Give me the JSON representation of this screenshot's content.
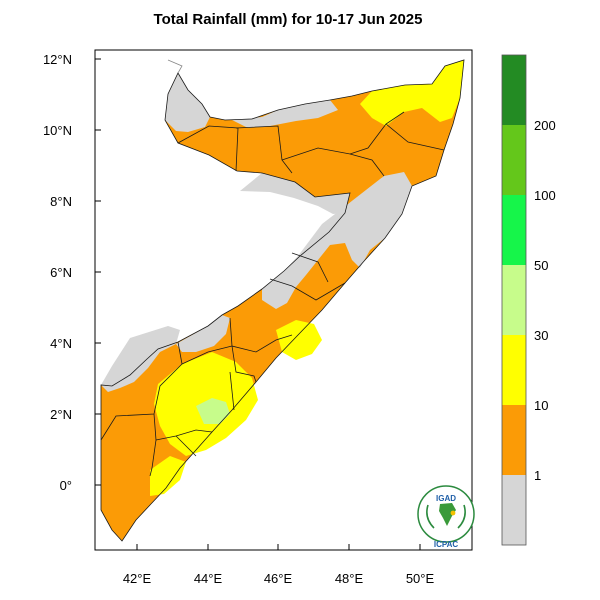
{
  "map": {
    "title": "Total Rainfall (mm) for 10-17 Jun 2025",
    "lat_labels": [
      "12°N",
      "10°N",
      "8°N",
      "6°N",
      "4°N",
      "2°N",
      "0°"
    ],
    "lon_labels": [
      "42°E",
      "44°E",
      "46°E",
      "48°E",
      "50°E"
    ],
    "colors": {
      "no_rain": "#d6d6d6",
      "range_1_10": "#fb9b06",
      "range_10_30": "#ffff00",
      "range_30_50": "#c7fc8b",
      "range_50_100": "#16f54a",
      "range_100_200": "#64c71b",
      "range_200_plus": "#238b23",
      "borders": "#1a1a1a"
    }
  },
  "legend": {
    "labels": [
      "1",
      "10",
      "30",
      "50",
      "100",
      "200"
    ]
  },
  "logo": {
    "top_text": "IGAD",
    "bottom_text": "ICPAC"
  }
}
